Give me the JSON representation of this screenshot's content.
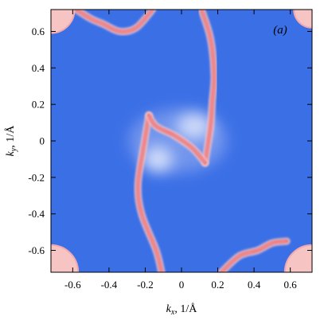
{
  "chart_data": {
    "type": "heatmap",
    "panel_label": "(a)",
    "xlabel": {
      "var": "k",
      "sub": "x",
      "unit": ", 1/Å"
    },
    "ylabel": {
      "var": "k",
      "sub": "y",
      "unit": ", 1/Å"
    },
    "xlim": [
      -0.72,
      0.72
    ],
    "ylim": [
      -0.72,
      0.72
    ],
    "xticks": [
      -0.6,
      -0.4,
      -0.2,
      0,
      0.2,
      0.4,
      0.6
    ],
    "yticks": [
      -0.6,
      -0.4,
      -0.2,
      0,
      0.2,
      0.4,
      0.6
    ],
    "xtick_labels": [
      "-0.6",
      "-0.4",
      "-0.2",
      "0",
      "0.2",
      "0.4",
      "0.6"
    ],
    "ytick_labels": [
      "-0.6",
      "-0.4",
      "-0.2",
      "0",
      "0.2",
      "0.4",
      "0.6"
    ],
    "colors": {
      "background": "#3b6fe6",
      "band": "#e8404a",
      "pocket": "#f7c4c4",
      "light_region": "#dfe6fb"
    },
    "corner_pockets": [
      {
        "kx": -0.72,
        "ky": 0.72,
        "radius": 0.13
      },
      {
        "kx": 0.72,
        "ky": 0.72,
        "radius": 0.1
      },
      {
        "kx": -0.72,
        "ky": -0.72,
        "radius": 0.15
      },
      {
        "kx": 0.72,
        "ky": -0.72,
        "radius": 0.15
      }
    ],
    "contours": [
      {
        "points": [
          [
            0.11,
            0.72
          ],
          [
            0.16,
            0.56
          ],
          [
            0.18,
            0.36
          ],
          [
            0.17,
            0.22
          ],
          [
            0.16,
            0.08
          ],
          [
            0.13,
            -0.12
          ]
        ]
      },
      {
        "points": [
          [
            -0.18,
            0.14
          ],
          [
            -0.21,
            -0.04
          ],
          [
            -0.24,
            -0.24
          ],
          [
            -0.22,
            -0.4
          ],
          [
            -0.14,
            -0.6
          ],
          [
            -0.11,
            -0.72
          ]
        ]
      },
      {
        "points": [
          [
            -0.18,
            0.14
          ],
          [
            -0.14,
            0.08
          ],
          [
            -0.04,
            0.03
          ],
          [
            0.06,
            -0.04
          ],
          [
            0.13,
            -0.12
          ]
        ]
      },
      {
        "points": [
          [
            -0.58,
            0.72
          ],
          [
            -0.5,
            0.67
          ],
          [
            -0.43,
            0.64
          ],
          [
            -0.34,
            0.6
          ],
          [
            -0.25,
            0.62
          ],
          [
            -0.16,
            0.72
          ]
        ]
      },
      {
        "points": [
          [
            0.22,
            -0.72
          ],
          [
            0.32,
            -0.63
          ],
          [
            0.42,
            -0.6
          ],
          [
            0.5,
            -0.56
          ],
          [
            0.58,
            -0.55
          ]
        ]
      }
    ]
  }
}
